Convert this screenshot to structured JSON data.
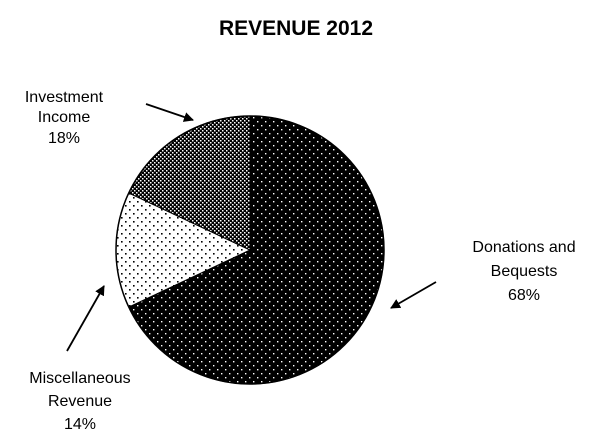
{
  "chart_data": {
    "type": "pie",
    "title": "REVENUE 2012",
    "slices": [
      {
        "name": "Donations and Bequests",
        "label_lines": [
          "Donations and",
          "Bequests"
        ],
        "value": 68,
        "pct_label": "68%",
        "pattern": "dark"
      },
      {
        "name": "Miscellaneous Revenue",
        "label_lines": [
          "Miscellaneous",
          "Revenue"
        ],
        "value": 14,
        "pct_label": "14%",
        "pattern": "light"
      },
      {
        "name": "Investment Income",
        "label_lines": [
          "Investment",
          "Income"
        ],
        "value": 18,
        "pct_label": "18%",
        "pattern": "medium"
      }
    ],
    "legend": "none",
    "start_angle_deg": 0,
    "direction": "clockwise"
  }
}
